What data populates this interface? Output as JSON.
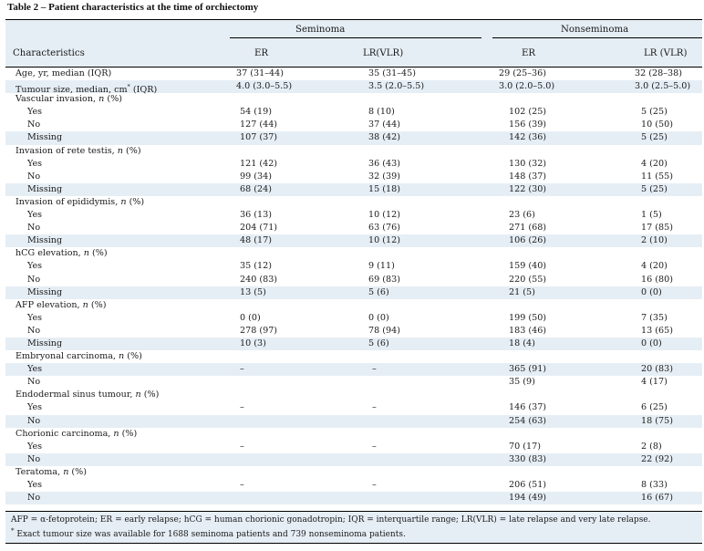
{
  "title": "Table 2 – Patient characteristics at the time of orchiectomy",
  "header": {
    "characteristics": "Characteristics",
    "group1": "Seminoma",
    "group2": "Nonseminoma",
    "er": "ER",
    "lr_a": "LR(VLR)",
    "lr_b": "LR (VLR)"
  },
  "rows": [
    {
      "label": "Age, yr, median (IQR)",
      "v": [
        "37 (31–44)",
        "35 (31–45)",
        "29 (25–36)",
        "32 (28–38)"
      ]
    },
    {
      "label": "Tumour size, median, cm* (IQR)",
      "v": [
        "4.0 (3.0–5.5)",
        "3.5 (2.0–5.5)",
        "3.0 (2.0–5.0)",
        "3.0 (2.5–5.0)"
      ],
      "shaded": true
    },
    {
      "label": "Vascular invasion, n (%)",
      "group": true
    },
    {
      "label": "Yes",
      "v": [
        "54 (19)",
        "8 (10)",
        "102 (25)",
        "5 (25)"
      ],
      "sub": true
    },
    {
      "label": "No",
      "v": [
        "127 (44)",
        "37 (44)",
        "156 (39)",
        "10 (50)"
      ],
      "sub": true
    },
    {
      "label": "Missing",
      "v": [
        "107 (37)",
        "38 (42)",
        "142 (36)",
        "5 (25)"
      ],
      "sub": true,
      "shaded": true
    },
    {
      "label": "Invasion of rete testis, n (%)",
      "group": true
    },
    {
      "label": "Yes",
      "v": [
        "121 (42)",
        "36 (43)",
        "130 (32)",
        "4 (20)"
      ],
      "sub": true
    },
    {
      "label": "No",
      "v": [
        "99 (34)",
        "32 (39)",
        "148 (37)",
        "11 (55)"
      ],
      "sub": true
    },
    {
      "label": "Missing",
      "v": [
        "68 (24)",
        "15 (18)",
        "122 (30)",
        "5 (25)"
      ],
      "sub": true,
      "shaded": true
    },
    {
      "label": "Invasion of epididymis, n (%)",
      "group": true
    },
    {
      "label": "Yes",
      "v": [
        "36 (13)",
        "10 (12)",
        "23 (6)",
        "1 (5)"
      ],
      "sub": true
    },
    {
      "label": "No",
      "v": [
        "204 (71)",
        "63 (76)",
        "271 (68)",
        "17 (85)"
      ],
      "sub": true
    },
    {
      "label": "Missing",
      "v": [
        "48 (17)",
        "10 (12)",
        "106 (26)",
        "2 (10)"
      ],
      "sub": true,
      "shaded": true
    },
    {
      "label": "hCG elevation, n (%)",
      "group": true
    },
    {
      "label": "Yes",
      "v": [
        "35 (12)",
        "9 (11)",
        "159 (40)",
        "4 (20)"
      ],
      "sub": true
    },
    {
      "label": "No",
      "v": [
        "240 (83)",
        "69 (83)",
        "220 (55)",
        "16 (80)"
      ],
      "sub": true
    },
    {
      "label": "Missing",
      "v": [
        "13 (5)",
        "5 (6)",
        "21 (5)",
        "0 (0)"
      ],
      "sub": true,
      "shaded": true
    },
    {
      "label": "AFP elevation, n (%)",
      "group": true
    },
    {
      "label": "Yes",
      "v": [
        "0 (0)",
        "0 (0)",
        "199 (50)",
        "7 (35)"
      ],
      "sub": true
    },
    {
      "label": "No",
      "v": [
        "278 (97)",
        "78 (94)",
        "183 (46)",
        "13 (65)"
      ],
      "sub": true
    },
    {
      "label": "Missing",
      "v": [
        "10 (3)",
        "5 (6)",
        "18 (4)",
        "0 (0)"
      ],
      "sub": true,
      "shaded": true
    },
    {
      "label": "Embryonal carcinoma, n (%)",
      "group": true
    },
    {
      "label": "Yes",
      "v": [
        "–",
        "–",
        "365 (91)",
        "20 (83)"
      ],
      "sub": true,
      "dash": true,
      "shaded": true
    },
    {
      "label": "No",
      "v": [
        "",
        "",
        "35 (9)",
        "4 (17)"
      ],
      "sub": true
    },
    {
      "label": "Endodermal sinus tumour, n (%)",
      "group": true
    },
    {
      "label": "Yes",
      "v": [
        "–",
        "–",
        "146 (37)",
        "6 (25)"
      ],
      "sub": true,
      "dash": true
    },
    {
      "label": "No",
      "v": [
        "",
        "",
        "254 (63)",
        "18 (75)"
      ],
      "sub": true,
      "shaded": true
    },
    {
      "label": "Chorionic carcinoma, n (%)",
      "group": true
    },
    {
      "label": "Yes",
      "v": [
        "–",
        "–",
        "70 (17)",
        "2 (8)"
      ],
      "sub": true,
      "dash": true
    },
    {
      "label": "No",
      "v": [
        "",
        "",
        "330 (83)",
        "22 (92)"
      ],
      "sub": true,
      "shaded": true
    },
    {
      "label": "Teratoma, n (%)",
      "group": true
    },
    {
      "label": "Yes",
      "v": [
        "–",
        "–",
        "206 (51)",
        "8 (33)"
      ],
      "sub": true,
      "dash": true
    },
    {
      "label": "No",
      "v": [
        "",
        "",
        "194 (49)",
        "16 (67)"
      ],
      "sub": true,
      "shaded": true
    }
  ],
  "footnotes": [
    "AFP = α-fetoprotein; ER = early relapse; hCG = human chorionic gonadotropin; IQR = interquartile range; LR(VLR) = late relapse and very late relapse.",
    "Exact tumour size was available for 1688 seminoma patients and 739 nonseminoma patients."
  ]
}
